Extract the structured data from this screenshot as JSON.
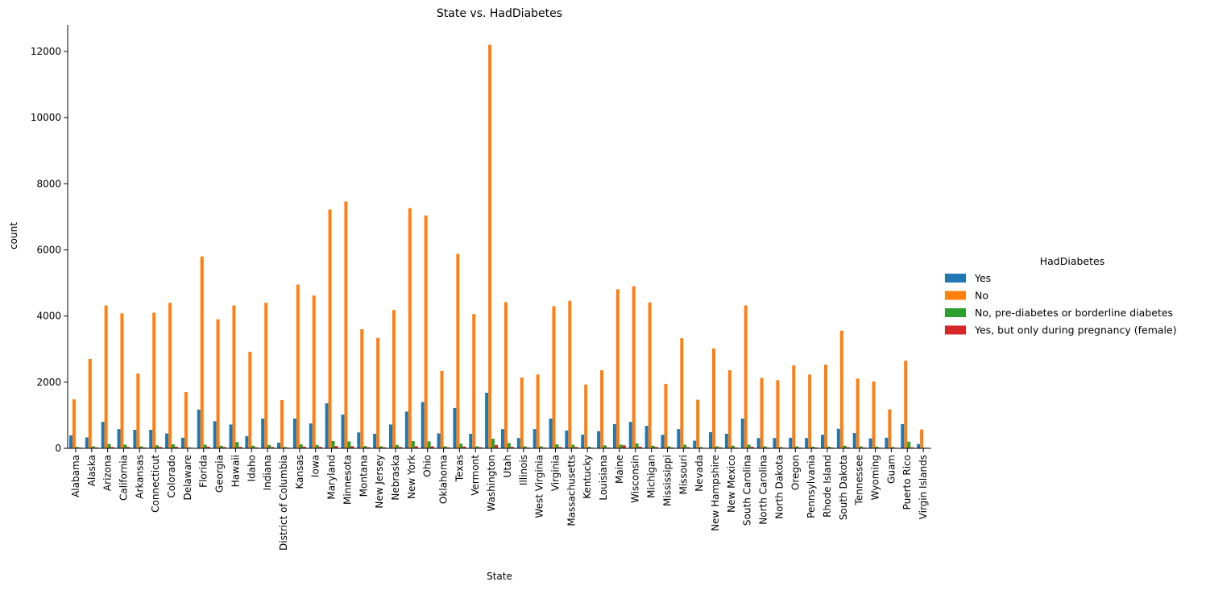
{
  "chart_data": {
    "type": "bar",
    "title": "State vs. HadDiabetes",
    "xlabel": "State",
    "ylabel": "count",
    "ylim": [
      0,
      12800
    ],
    "yticks": [
      0,
      2000,
      4000,
      6000,
      8000,
      10000,
      12000
    ],
    "legend": {
      "title": "HadDiabetes",
      "placement": "right"
    },
    "categories": [
      "Alabama",
      "Alaska",
      "Arizona",
      "California",
      "Arkansas",
      "Connecticut",
      "Colorado",
      "Delaware",
      "Florida",
      "Georgia",
      "Hawaii",
      "Idaho",
      "Indiana",
      "District of Columbia",
      "Kansas",
      "Iowa",
      "Maryland",
      "Minnesota",
      "Montana",
      "New Jersey",
      "Nebraska",
      "New York",
      "Ohio",
      "Oklahoma",
      "Texas",
      "Vermont",
      "Washington",
      "Utah",
      "Illinois",
      "West Virginia",
      "Virginia",
      "Massachusetts",
      "Kentucky",
      "Louisiana",
      "Maine",
      "Wisconsin",
      "Michigan",
      "Mississippi",
      "Missouri",
      "Nevada",
      "New Hampshire",
      "New Mexico",
      "South Carolina",
      "North Carolina",
      "North Dakota",
      "Oregon",
      "Pennsylvania",
      "Rhode Island",
      "South Dakota",
      "Tennessee",
      "Wyoming",
      "Guam",
      "Puerto Rico",
      "Virgin Islands"
    ],
    "series": [
      {
        "name": "Yes",
        "color": "#1f77b4",
        "values": [
          390,
          330,
          800,
          580,
          560,
          560,
          450,
          320,
          1170,
          820,
          720,
          370,
          900,
          170,
          900,
          750,
          1360,
          1020,
          480,
          440,
          720,
          1110,
          1400,
          450,
          1220,
          440,
          1680,
          580,
          310,
          580,
          900,
          540,
          410,
          520,
          730,
          800,
          680,
          410,
          580,
          230,
          490,
          440,
          900,
          310,
          310,
          320,
          310,
          410,
          590,
          460,
          300,
          320,
          730,
          130
        ]
      },
      {
        "name": "No",
        "color": "#ff7f0e",
        "values": [
          1480,
          2700,
          4320,
          4080,
          2260,
          4100,
          4400,
          1700,
          5800,
          3900,
          4320,
          2920,
          4400,
          1460,
          4950,
          4620,
          7220,
          7460,
          3600,
          3340,
          4180,
          7260,
          7040,
          2340,
          5880,
          4060,
          12200,
          4420,
          2140,
          2230,
          4300,
          4460,
          1930,
          2360,
          4810,
          4900,
          4410,
          1950,
          3330,
          1470,
          3020,
          2360,
          4320,
          2130,
          2060,
          2510,
          2230,
          2530,
          3560,
          2110,
          2020,
          1180,
          2650,
          570
        ]
      },
      {
        "name": "No, pre-diabetes or borderline diabetes",
        "color": "#2ca02c",
        "values": [
          40,
          60,
          130,
          110,
          60,
          90,
          120,
          30,
          110,
          80,
          190,
          80,
          100,
          40,
          120,
          100,
          220,
          210,
          70,
          60,
          100,
          220,
          210,
          60,
          140,
          60,
          290,
          160,
          60,
          60,
          120,
          110,
          50,
          90,
          110,
          150,
          80,
          60,
          110,
          40,
          60,
          80,
          110,
          60,
          40,
          60,
          50,
          50,
          80,
          60,
          50,
          40,
          200,
          20
        ]
      },
      {
        "name": "Yes, but only during pregnancy (female)",
        "color": "#d62728",
        "values": [
          20,
          30,
          40,
          40,
          25,
          40,
          45,
          15,
          50,
          40,
          45,
          30,
          40,
          20,
          50,
          45,
          70,
          65,
          35,
          30,
          40,
          65,
          60,
          30,
          55,
          35,
          100,
          45,
          25,
          25,
          40,
          40,
          20,
          25,
          90,
          50,
          40,
          25,
          35,
          15,
          30,
          25,
          45,
          25,
          20,
          25,
          25,
          25,
          35,
          25,
          20,
          15,
          30,
          10
        ]
      }
    ]
  }
}
